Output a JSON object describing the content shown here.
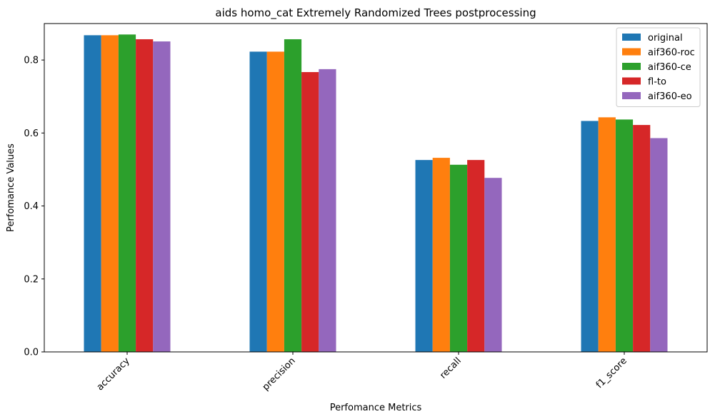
{
  "chart_data": {
    "type": "bar",
    "title": "aids homo_cat Extremely Randomized Trees postprocessing",
    "xlabel": "Perfomance Metrics",
    "ylabel": "Perfomance Values",
    "categories": [
      "accuracy",
      "precision",
      "recall",
      "f1_score"
    ],
    "ylim": [
      0,
      0.9
    ],
    "yticks": [
      "0.0",
      "0.2",
      "0.4",
      "0.6",
      "0.8"
    ],
    "grid": false,
    "legend_position": "top-right",
    "series": [
      {
        "name": "original",
        "color": "#1f77b4",
        "values": [
          0.868,
          0.823,
          0.526,
          0.633
        ]
      },
      {
        "name": "aif360-roc",
        "color": "#ff7f0e",
        "values": [
          0.868,
          0.823,
          0.532,
          0.643
        ]
      },
      {
        "name": "aif360-ce",
        "color": "#2ca02c",
        "values": [
          0.87,
          0.857,
          0.513,
          0.637
        ]
      },
      {
        "name": "fl-to",
        "color": "#d62728",
        "values": [
          0.857,
          0.767,
          0.526,
          0.622
        ]
      },
      {
        "name": "aif360-eo",
        "color": "#9467bd",
        "values": [
          0.851,
          0.775,
          0.477,
          0.586
        ]
      }
    ]
  }
}
